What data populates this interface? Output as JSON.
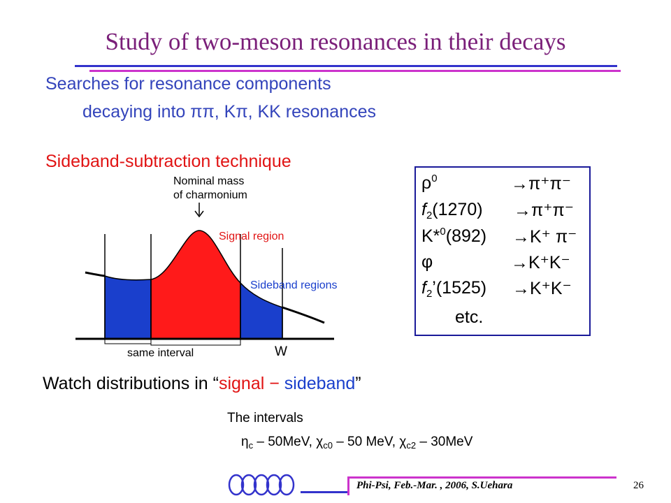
{
  "slide": {
    "title": "Study of  two-meson resonances in their decays",
    "line1": "Searches for resonance components",
    "line2": "decaying into  ππ, Kπ, KK resonances",
    "section_title": "Sideband-subtraction  technique",
    "colors": {
      "title": "#7a1f79",
      "blue_text": "#3344bb",
      "red": "#e11414",
      "blue_fill": "#1a3fcc",
      "magenta": "#cc33cc"
    }
  },
  "diagram": {
    "nominal_line1": "Nominal mass",
    "nominal_line2": "of charmonium",
    "signal_label": "Signal region",
    "sideband_label": "Sideband regions",
    "same_interval_label": "same interval",
    "axis_label": "W",
    "arrow_icon": "down-arrow-icon"
  },
  "decays": [
    {
      "lhs_main": "ρ",
      "lhs_sup": "0",
      "lhs_rest": "",
      "lhs_sub": "",
      "arrow": "→",
      "rhs": "π⁺π⁻"
    },
    {
      "lhs_main": "f",
      "lhs_sub": "2",
      "lhs_rest": "(1270)",
      "lhs_sup": "",
      "arrow": "→",
      "rhs": "π⁺π⁻"
    },
    {
      "lhs_main": "K*",
      "lhs_sup": "0",
      "lhs_rest": "(892)",
      "lhs_sub": "",
      "arrow": "→",
      "rhs": "K⁺ π⁻"
    },
    {
      "lhs_main": "φ",
      "lhs_sup": "",
      "lhs_rest": "",
      "lhs_sub": "",
      "arrow": "→",
      "rhs": "K⁺K⁻"
    },
    {
      "lhs_main": "f",
      "lhs_sub": "2",
      "lhs_rest": "’(1525)",
      "lhs_sup": "",
      "arrow": "→",
      "rhs": "K⁺K⁻"
    }
  ],
  "decays_etc": "etc.",
  "watch": {
    "prefix": "Watch distributions in “",
    "signal": "signal",
    "minus": " − ",
    "sideband": "sideband",
    "suffix": "”"
  },
  "intervals": {
    "heading": "The intervals",
    "eta_sym": "η",
    "eta_sub": "c",
    "eta_val": " – 50MeV,  ",
    "chi0_sym": "χ",
    "chi0_sub": "c0",
    "chi0_val": " – 50 MeV,  ",
    "chi2_sym": "χ",
    "chi2_sub": "c2",
    "chi2_val": " – 30MeV"
  },
  "footer": {
    "text": "Phi-Psi, Feb.-Mar. , 2006, S.Uehara",
    "page_number": "26",
    "logo_icon": "five-rings-logo-icon"
  }
}
